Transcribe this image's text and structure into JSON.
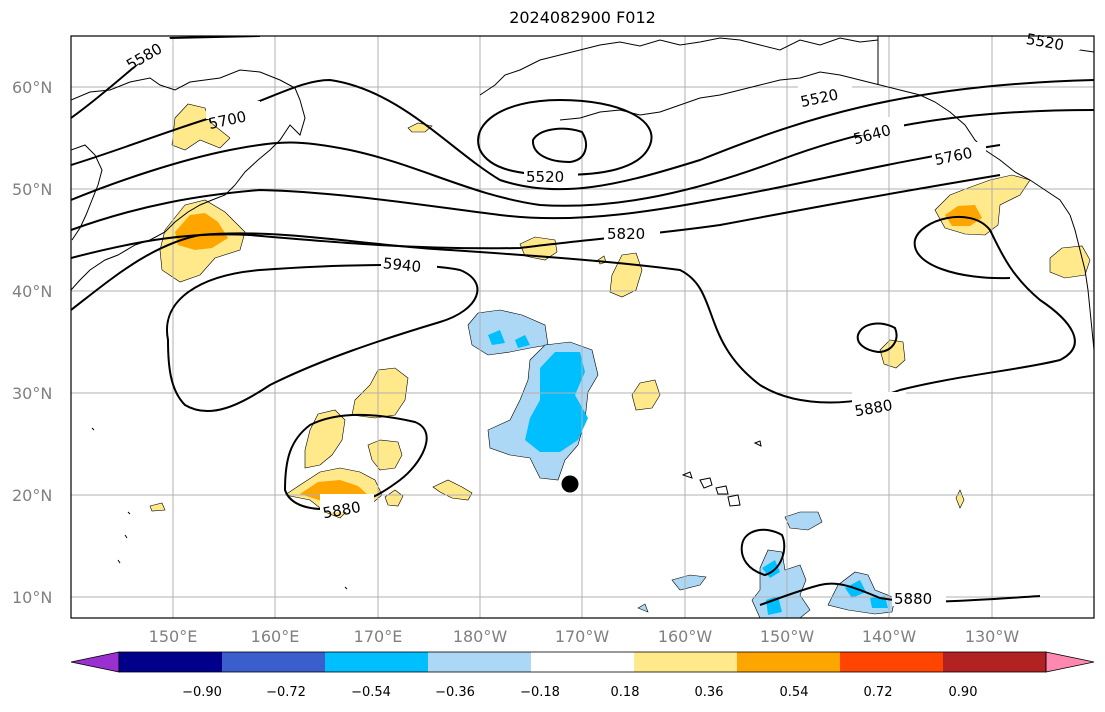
{
  "title": "2024082900 F012",
  "colors": {
    "contour": "#000000",
    "grid": "#b0b0b0",
    "coast": "#000000",
    "pos_018": "#ffe98a",
    "pos_036": "#ffa500",
    "pos_054": "#ff4500",
    "pos_072": "#b22222",
    "pos_090": "#ff88b0",
    "neg_018": "#add8f5",
    "neg_036": "#00bfff",
    "neg_054": "#3a5fcd",
    "neg_072": "#00008b",
    "neg_090": "#9b30d0",
    "marker": "#000000"
  },
  "map": {
    "lat_labels": [
      "60°N",
      "50°N",
      "40°N",
      "30°N",
      "20°N",
      "10°N"
    ],
    "lon_labels": [
      "150°E",
      "160°E",
      "170°E",
      "180°W",
      "170°W",
      "160°W",
      "150°W",
      "140°W",
      "130°W"
    ],
    "contour_labels": [
      "5580",
      "5700",
      "5520",
      "5520",
      "5520",
      "5640",
      "5760",
      "5820",
      "5940",
      "5880",
      "5880",
      "5880"
    ],
    "marker_name": "position-marker"
  },
  "colorbar": {
    "labels": [
      "−0.90",
      "−0.72",
      "−0.54",
      "−0.36",
      "−0.18",
      "0.18",
      "0.36",
      "0.54",
      "0.72",
      "0.90"
    ],
    "segment_colors": [
      "#9b30d0",
      "#00008b",
      "#3a5fcd",
      "#00bfff",
      "#add8f5",
      "#ffffff",
      "#ffe98a",
      "#ffa500",
      "#ff4500",
      "#b22222",
      "#ff88b0"
    ]
  }
}
